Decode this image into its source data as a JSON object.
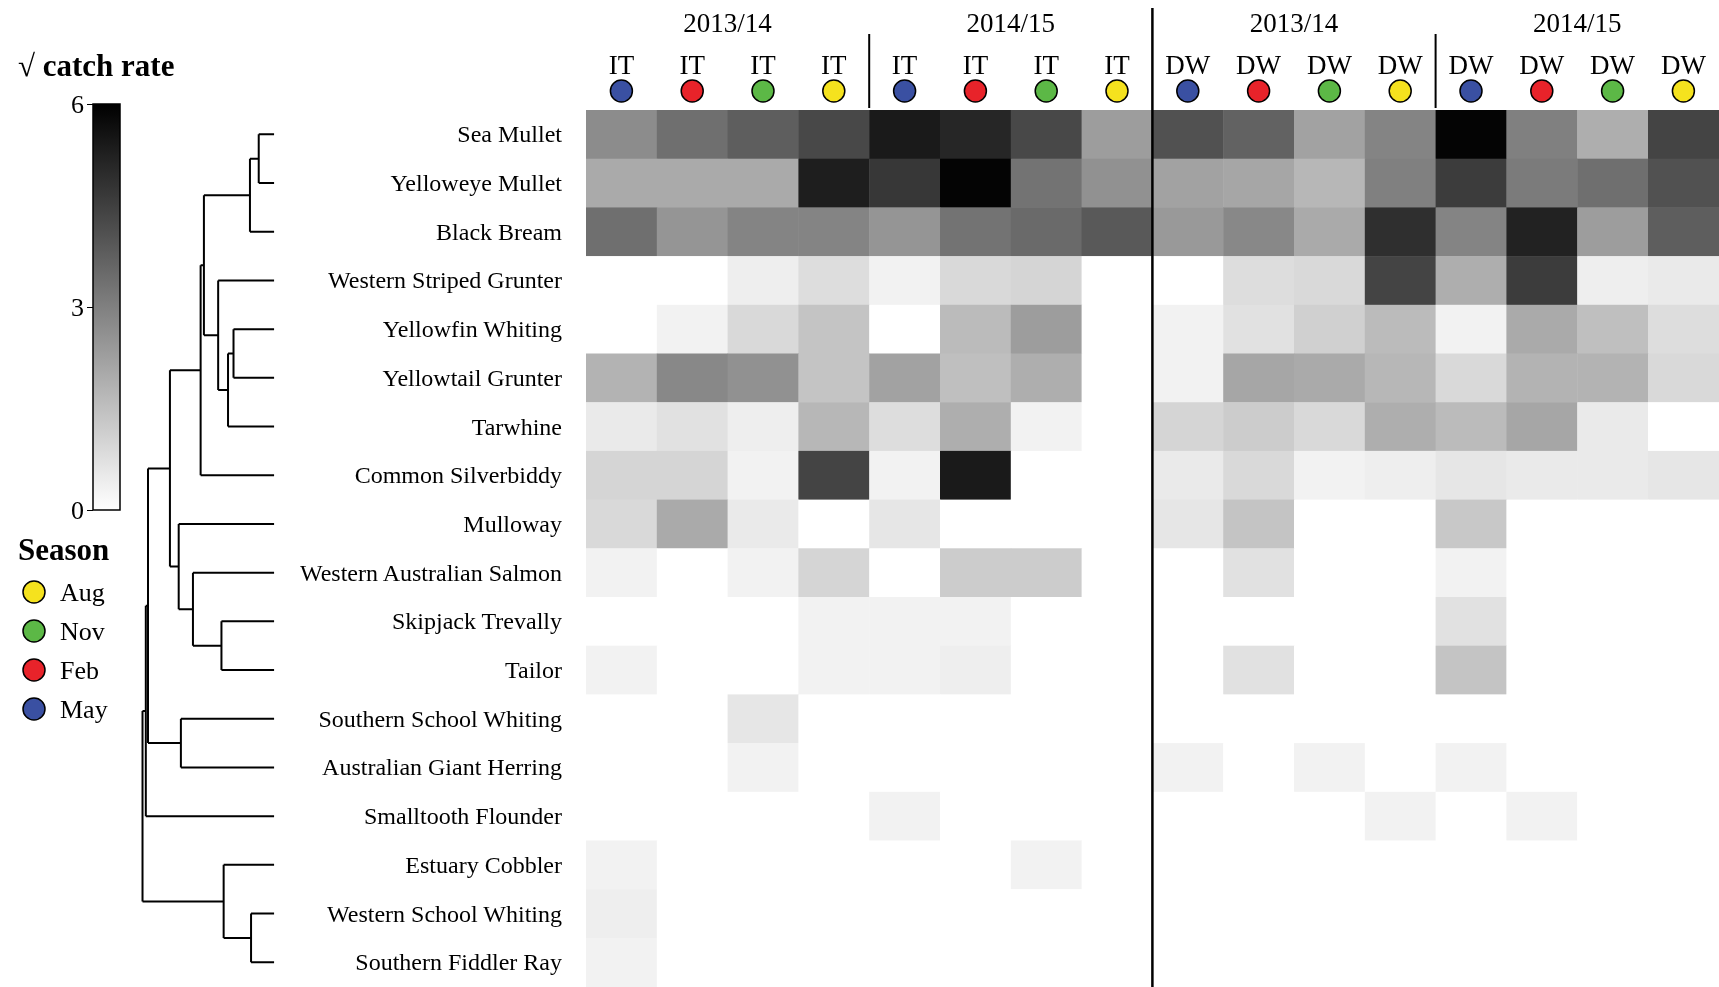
{
  "chart_data": [
    {
      "type": "heatmap",
      "clabel": "√ catch rate",
      "clim": [
        0,
        6
      ],
      "cticks": [
        0,
        3,
        6
      ],
      "annotations": [
        "2013/14",
        "2014/15",
        "2013/14",
        "2014/15"
      ],
      "categories": [
        "IT",
        "IT",
        "IT",
        "IT",
        "IT",
        "IT",
        "IT",
        "IT",
        "DW",
        "DW",
        "DW",
        "DW",
        "DW",
        "DW",
        "DW",
        "DW"
      ],
      "y_categories": [
        "Sea Mullet",
        "Yelloweye Mullet",
        "Black Bream",
        "Western Striped Grunter",
        "Yellowfin Whiting",
        "Yellowtail Grunter",
        "Tarwhine",
        "Common Silverbiddy",
        "Mulloway",
        "Western Australian Salmon",
        "Skipjack Trevally",
        "Tailor",
        "Southern School Whiting",
        "Australian Giant Herring",
        "Smalltooth Flounder",
        "Estuary Cobbler",
        "Western School Whiting",
        "Southern Fiddler Ray"
      ],
      "cells": [
        [
          2.7,
          3.4,
          3.8,
          4.3,
          5.4,
          5.1,
          4.3,
          2.3,
          4.1,
          3.7,
          2.2,
          2.9,
          5.9,
          3.0,
          1.9,
          4.4
        ],
        [
          2.0,
          2.0,
          2.0,
          5.3,
          4.7,
          5.9,
          3.3,
          2.6,
          2.2,
          2.1,
          1.7,
          3.0,
          4.6,
          3.1,
          3.4,
          4.1
        ],
        [
          3.4,
          2.5,
          2.9,
          2.9,
          2.5,
          3.3,
          3.5,
          3.9,
          2.4,
          2.8,
          2.0,
          4.9,
          2.9,
          5.2,
          2.3,
          3.8
        ],
        [
          0,
          0,
          0.4,
          0.8,
          0.3,
          0.9,
          1.0,
          0,
          0,
          0.8,
          0.9,
          4.4,
          1.9,
          4.6,
          0.4,
          0.5
        ],
        [
          0,
          0.3,
          0.9,
          1.4,
          0,
          1.6,
          2.3,
          0,
          0.3,
          0.7,
          1.1,
          1.6,
          0.3,
          2.0,
          1.5,
          0.8
        ],
        [
          1.8,
          2.8,
          2.6,
          1.4,
          2.2,
          1.5,
          1.9,
          0,
          0.3,
          2.1,
          2.0,
          1.7,
          0.9,
          1.8,
          1.8,
          0.9
        ],
        [
          0.5,
          0.7,
          0.4,
          1.7,
          0.8,
          1.9,
          0.3,
          0,
          1.0,
          1.2,
          0.9,
          1.9,
          1.6,
          2.1,
          0.5,
          0
        ],
        [
          1.0,
          1.0,
          0.3,
          4.4,
          0.3,
          5.4,
          0,
          0,
          0.5,
          0.9,
          0.3,
          0.4,
          0.6,
          0.5,
          0.5,
          0.6
        ],
        [
          0.9,
          2.0,
          0.5,
          0,
          0.6,
          0,
          0,
          0,
          0.6,
          1.4,
          0,
          0,
          1.3,
          0,
          0,
          0
        ],
        [
          0.3,
          0,
          0.3,
          1.0,
          0,
          1.2,
          1.2,
          0,
          0,
          0.7,
          0,
          0,
          0.3,
          0,
          0,
          0
        ],
        [
          0,
          0,
          0,
          0.3,
          0.3,
          0.3,
          0,
          0,
          0,
          0,
          0,
          0,
          0.7,
          0,
          0,
          0
        ],
        [
          0.3,
          0,
          0,
          0.3,
          0.3,
          0.4,
          0,
          0,
          0,
          0.7,
          0,
          0,
          1.4,
          0,
          0,
          0
        ],
        [
          0,
          0,
          0.6,
          0,
          0,
          0,
          0,
          0,
          0,
          0,
          0,
          0,
          0,
          0,
          0,
          0
        ],
        [
          0,
          0,
          0.3,
          0,
          0,
          0,
          0,
          0,
          0.3,
          0,
          0.3,
          0,
          0.3,
          0,
          0,
          0
        ],
        [
          0,
          0,
          0,
          0,
          0.3,
          0,
          0,
          0,
          0,
          0,
          0,
          0.3,
          0,
          0.3,
          0,
          0
        ],
        [
          0.3,
          0,
          0,
          0,
          0,
          0,
          0.3,
          0,
          0,
          0,
          0,
          0,
          0,
          0,
          0,
          0
        ],
        [
          0.4,
          0,
          0,
          0,
          0,
          0,
          0,
          0,
          0,
          0,
          0,
          0,
          0,
          0,
          0,
          0
        ],
        [
          0.3,
          0,
          0,
          0,
          0,
          0,
          0,
          0,
          0,
          0,
          0,
          0,
          0,
          0,
          0,
          0
        ]
      ]
    },
    {
      "type": "other",
      "title": "Season",
      "categories": [
        "Aug",
        "Nov",
        "Feb",
        "May"
      ],
      "colors": [
        "#f5e21e",
        "#5cb846",
        "#e8232a",
        "#3a50a2"
      ]
    }
  ]
}
